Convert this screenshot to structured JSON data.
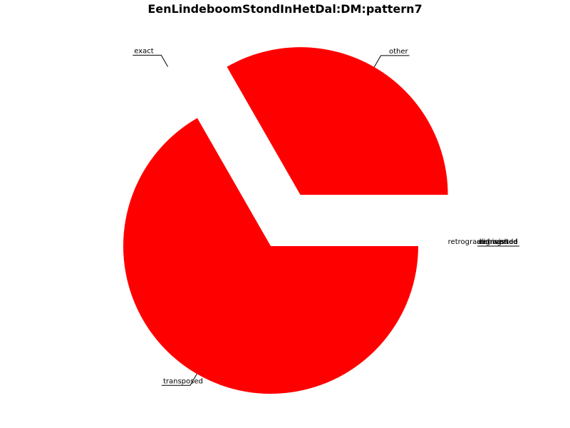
{
  "chart_data": {
    "type": "pie",
    "title": "EenLindeboomStondInHetDal:DM:pattern7",
    "slice_color": "#ff0000",
    "slices": [
      {
        "label": "other",
        "value": 33.3,
        "exploded": true
      },
      {
        "label": "exact",
        "value": 0.0,
        "exploded": true
      },
      {
        "label": "transposed",
        "value": 66.7,
        "exploded": false
      },
      {
        "label": "inverted",
        "value": 0.0,
        "exploded": true
      },
      {
        "label": "retrograde",
        "value": 0.0,
        "exploded": true
      },
      {
        "label": "retrograde inverted",
        "value": 0.0,
        "exploded": true
      },
      {
        "label": "augmented",
        "value": 0.0,
        "exploded": true
      },
      {
        "label": "diminished",
        "value": 0.0,
        "exploded": true
      }
    ]
  }
}
